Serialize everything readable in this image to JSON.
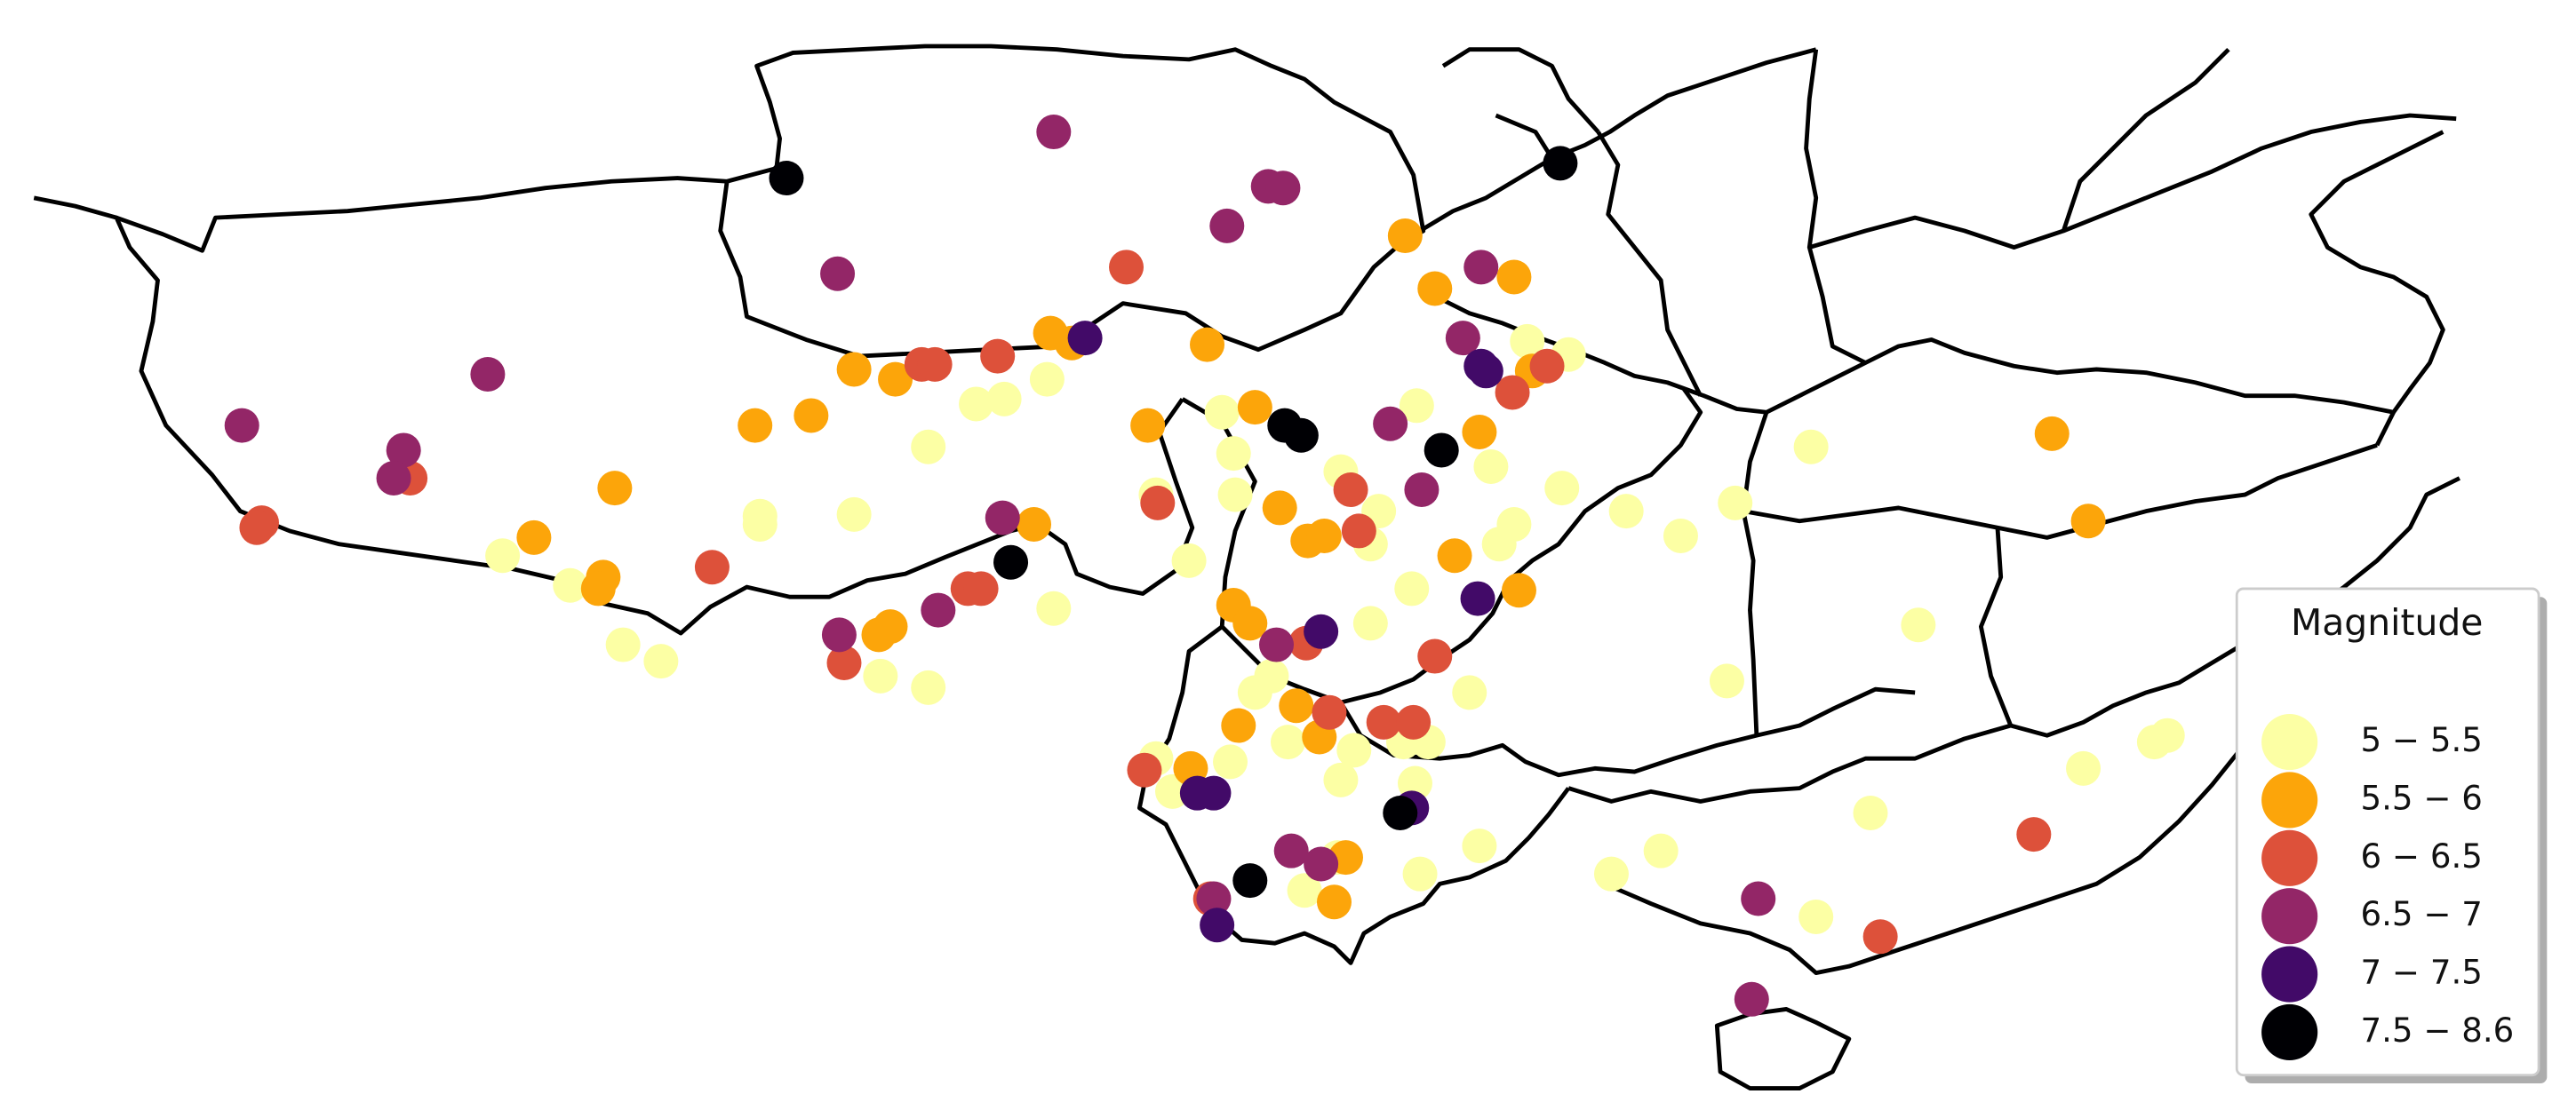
{
  "chart_data": {
    "type": "scatter_map",
    "legend_title": "Magnitude",
    "legend_position": "lower right",
    "series": [
      {
        "name": "5 − 5.5",
        "color": "#fcffa4",
        "lon": [
          96.42,
          95.13,
          95.64,
          94.26,
          92.91,
          91.2,
          91.2,
          86.52,
          87.75,
          88.71,
          89.4,
          93.39,
          94.26,
          96.54,
          99.81,
          99.84,
          101.76,
          102.3,
          102.45,
          103.14,
          104.49,
          105.78,
          104.91,
          104.64,
          103.05,
          102.3,
          100.5,
          100.2,
          100.8,
          102.0,
          102.9,
          103.35,
          103.11,
          101.76,
          99.75,
          98.4,
          101.1,
          103.2,
          104.28,
          107.58,
          106.68,
          112.26,
          108.78,
          110.31,
          108.93,
          106.95,
          107.94,
          116.55,
          116.79,
          115.26,
          111.39,
          110.4,
          105.15,
          105.9,
          99.6,
          98.4,
          99.0,
          101.7,
          98.7,
          104.1
        ],
        "lat": [
          36.0,
          35.55,
          35.64,
          34.77,
          33.54,
          33.51,
          33.36,
          32.79,
          32.25,
          31.17,
          30.87,
          30.6,
          30.39,
          31.83,
          34.65,
          33.9,
          34.32,
          33.0,
          33.6,
          35.52,
          34.41,
          34.02,
          33.36,
          33.0,
          32.19,
          31.56,
          30.6,
          30.3,
          29.4,
          29.25,
          29.4,
          29.4,
          28.65,
          28.71,
          29.04,
          29.1,
          26.7,
          27.0,
          27.51,
          27.42,
          27.0,
          31.53,
          30.51,
          34.77,
          33.75,
          33.6,
          33.15,
          29.4,
          29.52,
          28.92,
          28.11,
          26.22,
          36.69,
          36.45,
          35.4,
          33.9,
          32.7,
          27.3,
          28.5,
          30.3
        ]
      },
      {
        "name": "5.5 − 6",
        "color": "#fca50a",
        "lon": [
          102.93,
          104.91,
          103.47,
          96.48,
          96.87,
          92.91,
          93.66,
          92.13,
          91.11,
          88.56,
          87.09,
          88.35,
          88.26,
          96.18,
          93.57,
          93.36,
          100.2,
          98.25,
          99.33,
          100.65,
          101.16,
          101.46,
          103.83,
          104.28,
          105.0,
          99.81,
          100.11,
          99.9,
          100.95,
          101.37,
          99.03,
          101.85,
          101.64,
          114.69,
          115.35,
          105.24
        ],
        "lat": [
          38.61,
          37.86,
          37.65,
          36.84,
          36.66,
          36.18,
          36.0,
          35.34,
          35.16,
          34.02,
          33.12,
          32.4,
          32.19,
          33.36,
          31.5,
          31.35,
          35.49,
          35.16,
          36.63,
          33.66,
          33.06,
          33.15,
          32.79,
          35.04,
          32.16,
          31.89,
          31.56,
          29.7,
          30.06,
          29.49,
          28.92,
          27.3,
          26.49,
          35.01,
          33.42,
          36.15
        ]
      },
      {
        "name": "6 − 6.5",
        "color": "#dd513a",
        "lon": [
          97.86,
          95.52,
          94.14,
          94.38,
          82.14,
          82.05,
          84.84,
          90.33,
          92.73,
          94.98,
          95.22,
          98.43,
          101.94,
          102.09,
          104.88,
          105.51,
          103.47,
          101.55,
          102.54,
          103.08,
          98.19,
          99.39,
          111.57,
          114.36,
          101.13
        ],
        "lat": [
          38.04,
          36.42,
          36.27,
          36.27,
          33.39,
          33.3,
          34.2,
          32.58,
          30.84,
          32.19,
          32.19,
          33.75,
          33.99,
          33.24,
          35.76,
          36.24,
          30.96,
          29.94,
          29.76,
          29.76,
          28.89,
          26.55,
          25.86,
          27.72,
          31.2
        ]
      },
      {
        "name": "6.5 − 7",
        "color": "#932667",
        "lon": [
          96.54,
          100.44,
          100.71,
          99.69,
          92.61,
          86.25,
          81.78,
          84.72,
          84.54,
          104.31,
          103.98,
          102.66,
          103.23,
          95.61,
          92.64,
          94.44,
          100.59,
          100.86,
          101.4,
          99.45,
          109.35,
          109.23
        ],
        "lat": [
          40.5,
          39.51,
          39.48,
          38.79,
          37.92,
          36.09,
          35.16,
          34.71,
          34.2,
          38.04,
          36.75,
          35.19,
          33.99,
          33.48,
          31.35,
          31.8,
          31.17,
          27.42,
          27.18,
          26.55,
          26.55,
          24.72
        ]
      },
      {
        "name": "7 − 7.5",
        "color": "#420a68",
        "lon": [
          97.11,
          104.31,
          104.4,
          104.25,
          99.15,
          99.45,
          103.05,
          99.51,
          101.4
        ],
        "lat": [
          36.75,
          36.24,
          36.15,
          32.01,
          28.47,
          28.47,
          28.2,
          26.07,
          31.41
        ]
      },
      {
        "name": "7.5 − 8.6",
        "color": "#000004",
        "lon": [
          91.68,
          105.75,
          95.76,
          100.74,
          101.04,
          103.59,
          102.84,
          100.11
        ],
        "lat": [
          39.66,
          39.93,
          32.67,
          35.16,
          34.98,
          34.71,
          28.11,
          26.88
        ]
      }
    ]
  }
}
